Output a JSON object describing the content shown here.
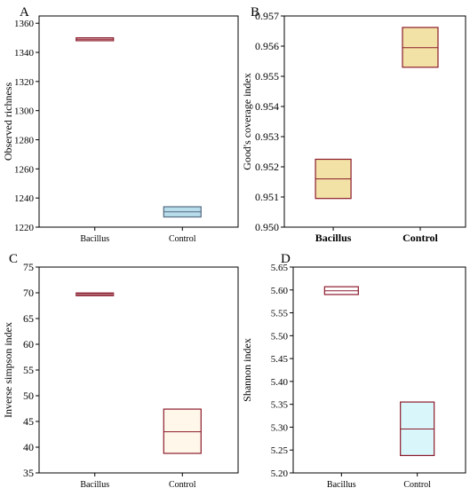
{
  "chart_data": [
    {
      "panel": "A",
      "type": "box",
      "ylabel": "Observed richness",
      "categories": [
        "Bacillus",
        "Control"
      ],
      "yticks": [
        "1220",
        "1240",
        "1260",
        "1280",
        "1300",
        "1320",
        "1340",
        "1360"
      ],
      "ylim": [
        1220,
        1365
      ],
      "boxes": [
        {
          "category": "Bacillus",
          "q1": 1348,
          "median": 1349,
          "q3": 1350,
          "fill": "#f3e0e0",
          "stroke": "#8b1a2b"
        },
        {
          "category": "Control",
          "q1": 1227,
          "median": 1230.5,
          "q3": 1234,
          "fill": "#b7dcea",
          "stroke": "#556a80"
        }
      ]
    },
    {
      "panel": "B",
      "type": "box",
      "ylabel": "Good's coverage index",
      "categories": [
        "Bacillus",
        "Control"
      ],
      "yticks": [
        "0.950",
        "0.951",
        "0.952",
        "0.953",
        "0.954",
        "0.955",
        "0.956",
        "0.957"
      ],
      "ylim": [
        0.95,
        0.957
      ],
      "boxes": [
        {
          "category": "Bacillus",
          "q1": 0.95095,
          "median": 0.9516,
          "q3": 0.95225,
          "fill": "#f2e2a6",
          "stroke": "#8b1a2b"
        },
        {
          "category": "Control",
          "q1": 0.9553,
          "median": 0.95595,
          "q3": 0.95662,
          "fill": "#f2e2a6",
          "stroke": "#8b1a2b"
        }
      ]
    },
    {
      "panel": "C",
      "type": "box",
      "ylabel": "Inverse simpson index",
      "categories": [
        "Bacillus",
        "Control"
      ],
      "yticks": [
        "35",
        "40",
        "45",
        "50",
        "55",
        "60",
        "65",
        "70",
        "75"
      ],
      "ylim": [
        35,
        75
      ],
      "boxes": [
        {
          "category": "Bacillus",
          "q1": 69.5,
          "median": 69.7,
          "q3": 69.9,
          "fill": "#8b1a2b",
          "stroke": "#8b1a2b"
        },
        {
          "category": "Control",
          "q1": 38.8,
          "median": 43.0,
          "q3": 47.4,
          "fill": "#fff8ea",
          "stroke": "#8b1a2b"
        }
      ]
    },
    {
      "panel": "D",
      "type": "box",
      "ylabel": "Shannon index",
      "categories": [
        "Bacillus",
        "Control"
      ],
      "yticks": [
        "5.20",
        "5.25",
        "5.30",
        "5.35",
        "5.40",
        "5.45",
        "5.50",
        "5.55",
        "5.60",
        "5.65"
      ],
      "ylim": [
        5.2,
        5.65
      ],
      "boxes": [
        {
          "category": "Bacillus",
          "q1": 5.59,
          "median": 5.598,
          "q3": 5.607,
          "fill": "#ffffff",
          "stroke": "#8b1a2b"
        },
        {
          "category": "Control",
          "q1": 5.238,
          "median": 5.296,
          "q3": 5.355,
          "fill": "#d9f7fb",
          "stroke": "#8b1a2b"
        }
      ]
    }
  ]
}
